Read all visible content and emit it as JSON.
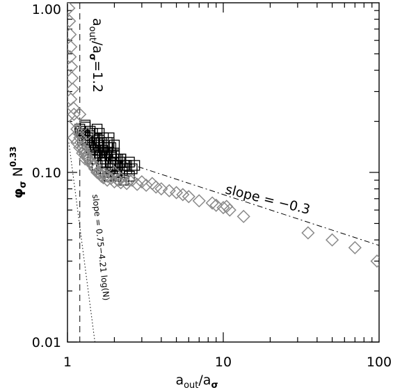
{
  "chart_data": {
    "type": "scatter",
    "xscale": "log",
    "yscale": "log",
    "xlim": [
      1,
      100
    ],
    "ylim": [
      0.01,
      1.0
    ],
    "xlabel": "a_out/a_σ",
    "ylabel": "φ_σ N^0.33",
    "xtick_labels": [
      "1",
      "10",
      "100"
    ],
    "ytick_labels": [
      "0.01",
      "0.10",
      "1.00"
    ],
    "xticks": [
      1,
      10,
      100
    ],
    "yticks": [
      0.01,
      0.1,
      1.0
    ],
    "grid": false,
    "colors": {
      "black_squares": "#000000",
      "gray_diamonds": "#888888",
      "lines": "#000000"
    },
    "series": [
      {
        "marker": "square",
        "color": "black",
        "x": [
          1.2,
          1.25,
          1.3,
          1.35,
          1.4,
          1.45,
          1.5,
          1.55,
          1.6,
          1.65,
          1.7,
          1.75,
          1.8,
          1.85,
          1.9,
          1.95,
          2.0,
          2.05,
          2.1,
          2.2,
          2.3,
          2.4,
          2.5,
          1.22,
          1.28,
          1.33,
          1.38,
          1.42,
          1.48,
          1.52,
          1.58,
          1.62,
          1.68,
          1.72,
          1.78,
          1.82,
          1.88,
          1.92,
          1.98,
          2.02,
          2.08,
          2.15,
          2.25,
          2.35,
          1.3,
          1.4,
          1.5,
          1.6,
          1.7,
          1.8,
          1.9,
          2.0,
          2.1,
          2.2,
          1.45,
          1.55,
          1.65,
          1.75,
          1.85,
          1.95,
          2.05,
          1.6,
          1.7,
          1.8,
          1.9,
          2.0,
          2.2,
          2.4,
          2.6,
          2.5,
          1.5,
          1.7,
          1.9,
          2.3,
          1.35,
          1.25,
          2.7,
          1.55,
          1.85,
          2.0
        ],
        "y": [
          0.18,
          0.17,
          0.19,
          0.16,
          0.15,
          0.17,
          0.14,
          0.16,
          0.13,
          0.15,
          0.14,
          0.12,
          0.13,
          0.15,
          0.12,
          0.11,
          0.13,
          0.12,
          0.11,
          0.12,
          0.11,
          0.105,
          0.115,
          0.175,
          0.165,
          0.155,
          0.165,
          0.14,
          0.15,
          0.135,
          0.145,
          0.125,
          0.135,
          0.13,
          0.125,
          0.14,
          0.115,
          0.125,
          0.12,
          0.11,
          0.1,
          0.105,
          0.1,
          0.11,
          0.185,
          0.175,
          0.16,
          0.155,
          0.145,
          0.14,
          0.13,
          0.125,
          0.12,
          0.115,
          0.12,
          0.11,
          0.105,
          0.1,
          0.095,
          0.1,
          0.095,
          0.17,
          0.16,
          0.15,
          0.14,
          0.13,
          0.12,
          0.11,
          0.105,
          0.095,
          0.125,
          0.115,
          0.105,
          0.09,
          0.145,
          0.155,
          0.11,
          0.18,
          0.16,
          0.145
        ]
      },
      {
        "marker": "diamond",
        "color": "gray",
        "x": [
          1.02,
          1.03,
          1.04,
          1.05,
          1.04,
          1.06,
          1.07,
          1.08,
          1.05,
          1.09,
          1.1,
          1.12,
          1.15,
          1.18,
          1.2,
          1.22,
          1.25,
          1.28,
          1.3,
          1.33,
          1.36,
          1.4,
          1.45,
          1.5,
          1.55,
          1.6,
          1.65,
          1.7,
          1.8,
          1.9,
          2.0,
          2.1,
          2.2,
          2.4,
          2.6,
          2.8,
          3.0,
          3.2,
          3.5,
          3.7,
          4.0,
          4.5,
          5.0,
          5.5,
          6.0,
          7.0,
          8.5,
          9.0,
          10.0,
          10.5,
          11.0,
          13.5,
          35.0,
          50.0,
          70.0,
          97.0,
          1.1,
          1.15,
          1.2,
          1.25,
          1.3,
          1.4,
          1.5,
          1.6,
          1.7,
          1.8,
          2.0,
          2.2,
          2.5,
          1.2,
          1.35
        ],
        "y": [
          0.93,
          0.78,
          0.65,
          0.55,
          0.48,
          0.42,
          0.36,
          0.31,
          0.27,
          0.24,
          0.22,
          0.2,
          0.18,
          0.17,
          0.16,
          0.15,
          0.14,
          0.135,
          0.13,
          0.125,
          0.12,
          0.115,
          0.11,
          0.105,
          0.1,
          0.098,
          0.095,
          0.093,
          0.09,
          0.092,
          0.088,
          0.09,
          0.087,
          0.086,
          0.09,
          0.085,
          0.088,
          0.084,
          0.086,
          0.082,
          0.08,
          0.078,
          0.076,
          0.074,
          0.072,
          0.068,
          0.066,
          0.064,
          0.062,
          0.063,
          0.06,
          0.055,
          0.044,
          0.04,
          0.036,
          0.03,
          0.16,
          0.15,
          0.14,
          0.13,
          0.12,
          0.115,
          0.11,
          0.1,
          0.098,
          0.095,
          0.1,
          0.092,
          0.09,
          0.22,
          0.17
        ]
      }
    ],
    "lines": [
      {
        "style": "dashed",
        "x_const": 1.2
      },
      {
        "style": "dotted",
        "description_from": "slope = 0.75-4.21 log(N)"
      },
      {
        "style": "dash-dot",
        "slope": -0.3
      }
    ],
    "annotations": {
      "vertical_line_label": "a_out/a_σ=1.2",
      "steep_line_label": "slope = 0.75−4.21 log(N)",
      "fit_line_label": "slope  =  −0.3"
    }
  }
}
